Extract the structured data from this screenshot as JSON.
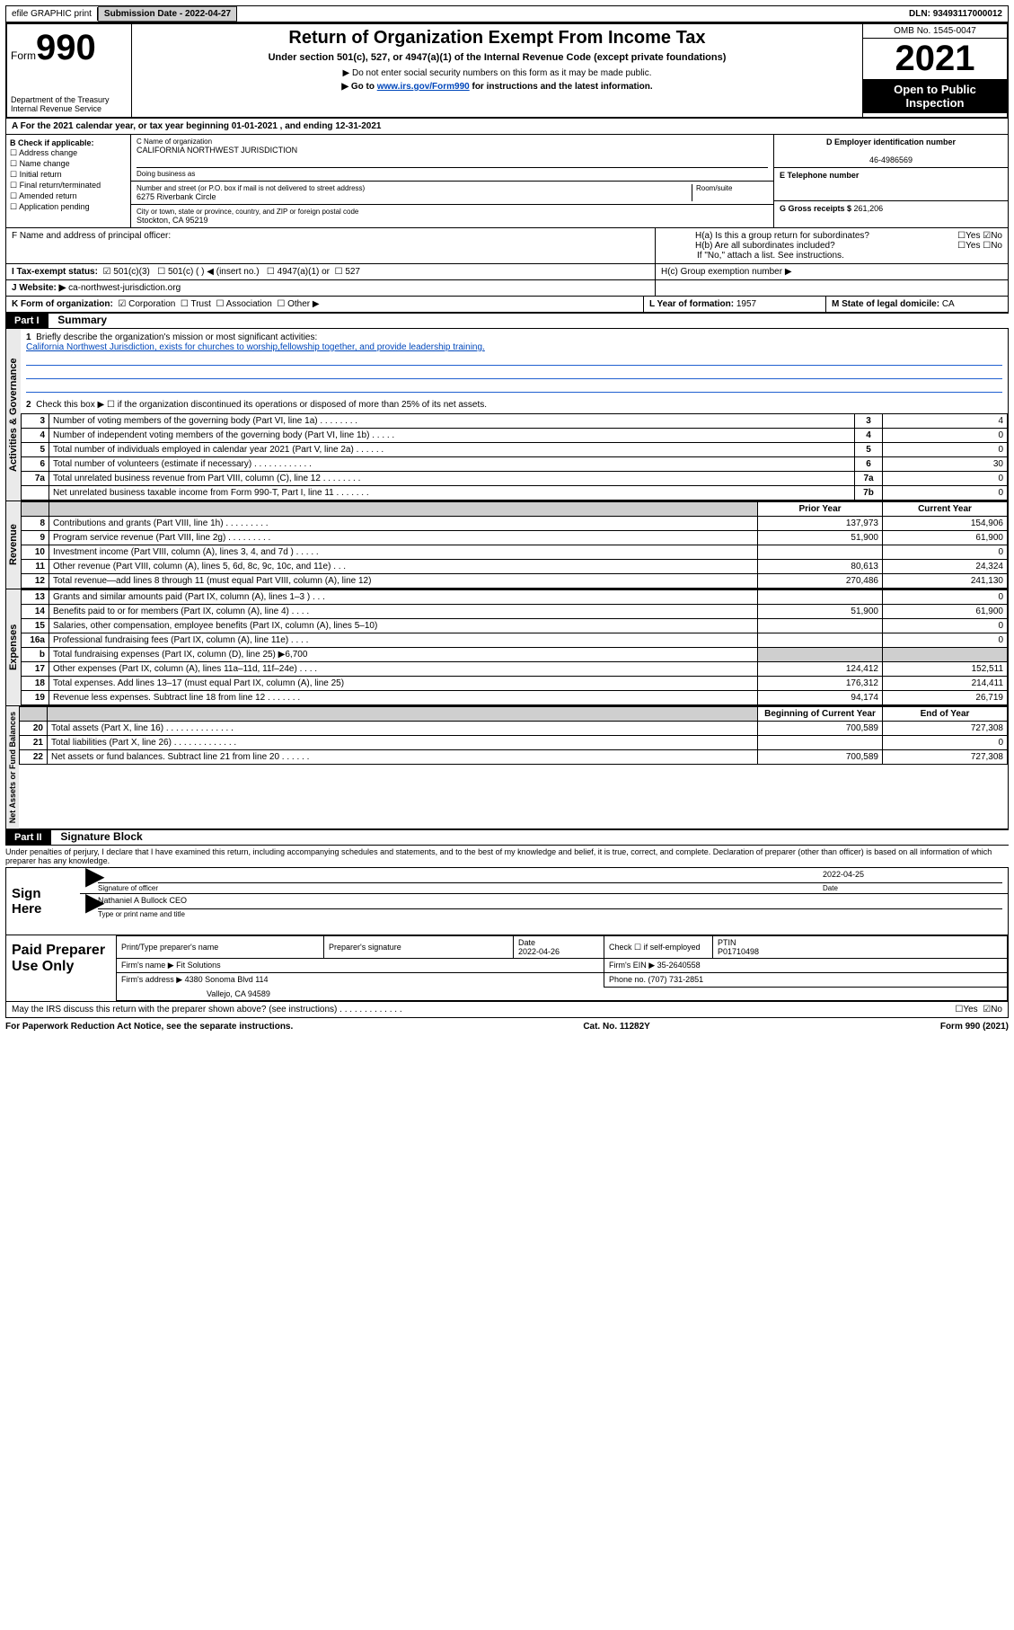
{
  "topbar": {
    "efile": "efile GRAPHIC print",
    "submission_label": "Submission Date - ",
    "submission_date": "2022-04-27",
    "dln_label": "DLN: ",
    "dln": "93493117000012"
  },
  "header": {
    "form_label": "Form",
    "form_num": "990",
    "dept": "Department of the Treasury\nInternal Revenue Service",
    "title": "Return of Organization Exempt From Income Tax",
    "sub1": "Under section 501(c), 527, or 4947(a)(1) of the Internal Revenue Code (except private foundations)",
    "sub2": "▶ Do not enter social security numbers on this form as it may be made public.",
    "sub3_pre": "▶ Go to ",
    "sub3_link": "www.irs.gov/Form990",
    "sub3_post": " for instructions and the latest information.",
    "omb": "OMB No. 1545-0047",
    "year": "2021",
    "opi": "Open to Public Inspection"
  },
  "line_a": "A For the 2021 calendar year, or tax year beginning 01-01-2021   , and ending 12-31-2021",
  "box_b": {
    "title": "B Check if applicable:",
    "items": [
      "Address change",
      "Name change",
      "Initial return",
      "Final return/terminated",
      "Amended return",
      "Application pending"
    ]
  },
  "box_c": {
    "name_label": "C Name of organization",
    "name": "CALIFORNIA NORTHWEST JURISDICTION",
    "dba_label": "Doing business as",
    "addr_label": "Number and street (or P.O. box if mail is not delivered to street address)",
    "addr": "6275 Riverbank Circle",
    "room_label": "Room/suite",
    "city_label": "City or town, state or province, country, and ZIP or foreign postal code",
    "city": "Stockton, CA  95219"
  },
  "box_d": {
    "label": "D Employer identification number",
    "value": "46-4986569"
  },
  "box_e": {
    "label": "E Telephone number"
  },
  "box_g": {
    "label": "G Gross receipts $ ",
    "value": "261,206"
  },
  "box_f": "F  Name and address of principal officer:",
  "box_h": {
    "a": "H(a)  Is this a group return for subordinates?",
    "b": "H(b)  Are all subordinates included?",
    "note": "If \"No,\" attach a list. See instructions.",
    "c": "H(c)  Group exemption number ▶",
    "yes": "Yes",
    "no": "No"
  },
  "box_i": {
    "label": "I    Tax-exempt status:",
    "o1": "501(c)(3)",
    "o2": "501(c) (   ) ◀ (insert no.)",
    "o3": "4947(a)(1) or",
    "o4": "527"
  },
  "box_j": {
    "label": "J    Website: ▶ ",
    "value": "ca-northwest-jurisdiction.org"
  },
  "box_k": {
    "label": "K Form of organization:",
    "o1": "Corporation",
    "o2": "Trust",
    "o3": "Association",
    "o4": "Other ▶"
  },
  "box_l": {
    "label": "L Year of formation: ",
    "value": "1957"
  },
  "box_m": {
    "label": "M State of legal domicile: ",
    "value": "CA"
  },
  "part1": {
    "tag": "Part I",
    "title": "Summary"
  },
  "summary": {
    "q1": "Briefly describe the organization's mission or most significant activities:",
    "mission": "California Northwest Jurisdiction, exists for churches to worship,fellowship together, and provide leadership training.",
    "q2": "Check this box ▶ ☐  if the organization discontinued its operations or disposed of more than 25% of its net assets.",
    "rows_gov": [
      {
        "n": "3",
        "t": "Number of voting members of the governing body (Part VI, line 1a)   .    .    .    .    .    .    .    .",
        "tag": "3",
        "v": "4"
      },
      {
        "n": "4",
        "t": "Number of independent voting members of the governing body (Part VI, line 1b)   .    .    .    .    .",
        "tag": "4",
        "v": "0"
      },
      {
        "n": "5",
        "t": "Total number of individuals employed in calendar year 2021 (Part V, line 2a)   .    .    .    .    .    .",
        "tag": "5",
        "v": "0"
      },
      {
        "n": "6",
        "t": "Total number of volunteers (estimate if necessary)   .    .    .    .    .    .    .    .    .    .    .    .",
        "tag": "6",
        "v": "30"
      },
      {
        "n": "7a",
        "t": "Total unrelated business revenue from Part VIII, column (C), line 12   .    .    .    .    .    .    .    .",
        "tag": "7a",
        "v": "0"
      },
      {
        "n": "",
        "t": "Net unrelated business taxable income from Form 990-T, Part I, line 11   .    .    .    .    .    .    .",
        "tag": "7b",
        "v": "0"
      }
    ],
    "col_headers": {
      "prior": "Prior Year",
      "current": "Current Year"
    },
    "rows_rev": [
      {
        "n": "8",
        "t": "Contributions and grants (Part VIII, line 1h)   .    .    .    .    .    .    .    .    .",
        "p": "137,973",
        "c": "154,906"
      },
      {
        "n": "9",
        "t": "Program service revenue (Part VIII, line 2g)   .    .    .    .    .    .    .    .    .",
        "p": "51,900",
        "c": "61,900"
      },
      {
        "n": "10",
        "t": "Investment income (Part VIII, column (A), lines 3, 4, and 7d )   .    .    .    .    .",
        "p": "",
        "c": "0"
      },
      {
        "n": "11",
        "t": "Other revenue (Part VIII, column (A), lines 5, 6d, 8c, 9c, 10c, and 11e)   .    .    .",
        "p": "80,613",
        "c": "24,324"
      },
      {
        "n": "12",
        "t": "Total revenue—add lines 8 through 11 (must equal Part VIII, column (A), line 12)",
        "p": "270,486",
        "c": "241,130"
      }
    ],
    "rows_exp": [
      {
        "n": "13",
        "t": "Grants and similar amounts paid (Part IX, column (A), lines 1–3 )   .    .    .",
        "p": "",
        "c": "0"
      },
      {
        "n": "14",
        "t": "Benefits paid to or for members (Part IX, column (A), line 4)   .    .    .    .",
        "p": "51,900",
        "c": "61,900"
      },
      {
        "n": "15",
        "t": "Salaries, other compensation, employee benefits (Part IX, column (A), lines 5–10)",
        "p": "",
        "c": "0"
      },
      {
        "n": "16a",
        "t": "Professional fundraising fees (Part IX, column (A), line 11e)   .    .    .    .",
        "p": "",
        "c": "0"
      },
      {
        "n": "b",
        "t": "Total fundraising expenses (Part IX, column (D), line 25) ▶6,700",
        "p": "GREY",
        "c": "GREY"
      },
      {
        "n": "17",
        "t": "Other expenses (Part IX, column (A), lines 11a–11d, 11f–24e)   .    .    .    .",
        "p": "124,412",
        "c": "152,511"
      },
      {
        "n": "18",
        "t": "Total expenses. Add lines 13–17 (must equal Part IX, column (A), line 25)",
        "p": "176,312",
        "c": "214,411"
      },
      {
        "n": "19",
        "t": "Revenue less expenses. Subtract line 18 from line 12   .    .    .    .    .    .    .",
        "p": "94,174",
        "c": "26,719"
      }
    ],
    "col_headers2": {
      "begin": "Beginning of Current Year",
      "end": "End of Year"
    },
    "rows_net": [
      {
        "n": "20",
        "t": "Total assets (Part X, line 16)   .    .    .    .    .    .    .    .    .    .    .    .    .    .",
        "p": "700,589",
        "c": "727,308"
      },
      {
        "n": "21",
        "t": "Total liabilities (Part X, line 26)   .    .    .    .    .    .    .    .    .    .    .    .    .",
        "p": "",
        "c": "0"
      },
      {
        "n": "22",
        "t": "Net assets or fund balances. Subtract line 21 from line 20   .    .    .    .    .    .",
        "p": "700,589",
        "c": "727,308"
      }
    ],
    "side_labels": {
      "gov": "Activities & Governance",
      "rev": "Revenue",
      "exp": "Expenses",
      "net": "Net Assets or Fund Balances"
    }
  },
  "part2": {
    "tag": "Part II",
    "title": "Signature Block",
    "decl": "Under penalties of perjury, I declare that I have examined this return, including accompanying schedules and statements, and to the best of my knowledge and belief, it is true, correct, and complete. Declaration of preparer (other than officer) is based on all information of which preparer has any knowledge."
  },
  "sign": {
    "side": "Sign Here",
    "sig_label": "Signature of officer",
    "date_label": "Date",
    "date": "2022-04-25",
    "name": "Nathaniel A Bullock  CEO",
    "name_label": "Type or print name and title"
  },
  "paid": {
    "side": "Paid Preparer Use Only",
    "h1": "Print/Type preparer's name",
    "h2": "Preparer's signature",
    "h3": "Date",
    "h3v": "2022-04-26",
    "h4": "Check ☐ if self-employed",
    "h5": "PTIN",
    "h5v": "P01710498",
    "firm_label": "Firm's name   ▶ ",
    "firm": "Fit Solutions",
    "ein_label": "Firm's EIN ▶ ",
    "ein": "35-2640558",
    "addr_label": "Firm's address ▶ ",
    "addr": "4380 Sonoma Blvd 114",
    "addr2": "Vallejo, CA  94589",
    "phone_label": "Phone no. ",
    "phone": "(707) 731-2851"
  },
  "may_irs": "May the IRS discuss this return with the preparer shown above? (see instructions)   .    .    .    .    .    .    .    .    .    .    .    .    .",
  "footer": {
    "left": "For Paperwork Reduction Act Notice, see the separate instructions.",
    "mid": "Cat. No. 11282Y",
    "right": "Form 990 (2021)"
  }
}
